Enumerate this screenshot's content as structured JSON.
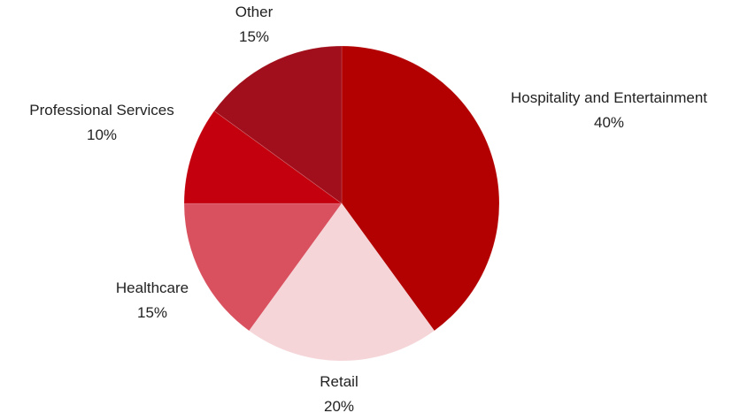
{
  "chart_data": {
    "type": "pie",
    "title": "",
    "slices": [
      {
        "label": "Hospitality and Entertainment",
        "value": 40,
        "value_label": "40%",
        "color": "#b30000"
      },
      {
        "label": "Retail",
        "value": 20,
        "value_label": "20%",
        "color": "#f5d5d8"
      },
      {
        "label": "Healthcare",
        "value": 15,
        "value_label": "15%",
        "color": "#d9505f"
      },
      {
        "label": "Professional Services",
        "value": 10,
        "value_label": "10%",
        "color": "#c4000e"
      },
      {
        "label": "Other",
        "value": 15,
        "value_label": "15%",
        "color": "#a00f1b"
      }
    ],
    "start_angle_deg": 0,
    "direction": "clockwise",
    "legend": "none",
    "labels": "outside"
  }
}
